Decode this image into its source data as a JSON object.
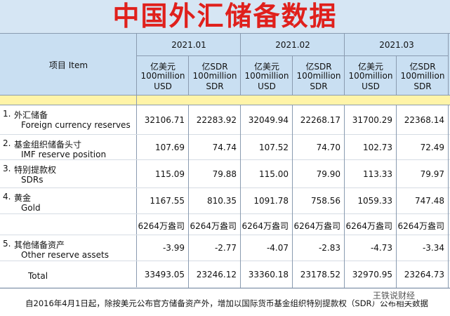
{
  "title": "中国外汇储备数据",
  "table": {
    "item_header": "项目 Item",
    "periods": [
      "2021.01",
      "2021.02",
      "2021.03"
    ],
    "units": [
      [
        "亿美元",
        "100million",
        "USD"
      ],
      [
        "亿SDR",
        "100million",
        "SDR"
      ],
      [
        "亿美元",
        "100million",
        "USD"
      ],
      [
        "亿SDR",
        "100million",
        "SDR"
      ],
      [
        "亿美元",
        "100million",
        "USD"
      ],
      [
        "亿SDR",
        "100million",
        "SDR"
      ]
    ],
    "rows": [
      {
        "number": "1.",
        "label_cn": "外汇储备",
        "label_en": "Foreign currency reserves",
        "cells": [
          "32106.71",
          "22283.92",
          "32049.94",
          "22268.17",
          "31700.29",
          "22368.14"
        ]
      },
      {
        "number": "2.",
        "label_cn": "基金组织储备头寸",
        "label_en": "IMF reserve position",
        "cells": [
          "107.69",
          "74.74",
          "107.52",
          "74.70",
          "102.73",
          "72.49"
        ]
      },
      {
        "number": "3.",
        "label_cn": "特别提款权",
        "label_en": "SDRs",
        "cells": [
          "115.09",
          "79.88",
          "115.00",
          "79.90",
          "113.33",
          "79.97"
        ]
      },
      {
        "number": "4.",
        "label_cn": "黄金",
        "label_en": "Gold",
        "cells": [
          "1167.55",
          "810.35",
          "1091.78",
          "758.56",
          "1059.33",
          "747.48"
        ]
      },
      {
        "cells": [
          "6264万盎司",
          "6264万盎司",
          "6264万盎司",
          "6264万盎司",
          "6264万盎司",
          "6264万盎司"
        ]
      },
      {
        "number": "5.",
        "label_cn": "其他储备资产",
        "label_en": "Other reserve assets",
        "cells": [
          "-3.99",
          "-2.77",
          "-4.07",
          "-2.83",
          "-4.73",
          "-3.34"
        ]
      },
      {
        "label_en": "Total",
        "cells": [
          "33493.05",
          "23246.12",
          "33360.18",
          "23178.52",
          "32970.95",
          "23264.73"
        ]
      }
    ]
  },
  "footer": "自2016年4月1日起，除按美元公布官方储备资产外，增加以国际货币基金组织特别提款权（SDR）公布相关数据",
  "watermark": "王铁说财经"
}
